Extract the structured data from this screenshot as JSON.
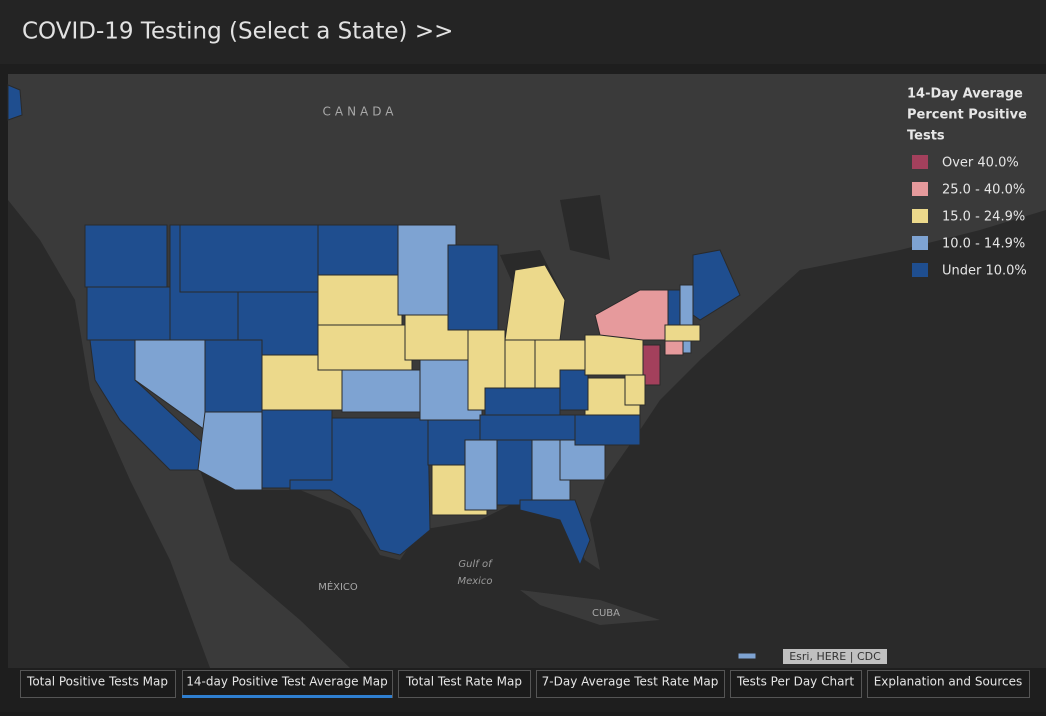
{
  "header": {
    "title": "COVID-19 Testing (Select a State) >>"
  },
  "map": {
    "labels": {
      "canada": "CANADA",
      "mexico": "MÉXICO",
      "gulf_1": "Gulf of",
      "gulf_2": "Mexico",
      "cuba": "CUBA"
    },
    "attribution": "Esri, HERE | CDC"
  },
  "legend": {
    "title_lines": [
      "14-Day Average",
      "Percent Positive",
      "Tests"
    ],
    "items": [
      {
        "label": "Over 40.0%",
        "color": "#a3405c"
      },
      {
        "label": "25.0 - 40.0%",
        "color": "#e69a9c"
      },
      {
        "label": "15.0 - 24.9%",
        "color": "#ecd98b"
      },
      {
        "label": "10.0 - 14.9%",
        "color": "#7ea3d2"
      },
      {
        "label": "Under 10.0%",
        "color": "#1f4e8f"
      }
    ]
  },
  "tabs": [
    "Total Positive Tests Map",
    "14-day Positive Test Average Map",
    "Total Test Rate Map",
    "7-Day Average Test Rate Map",
    "Tests Per Day Chart",
    "Explanation and Sources"
  ],
  "active_tab": 1
}
